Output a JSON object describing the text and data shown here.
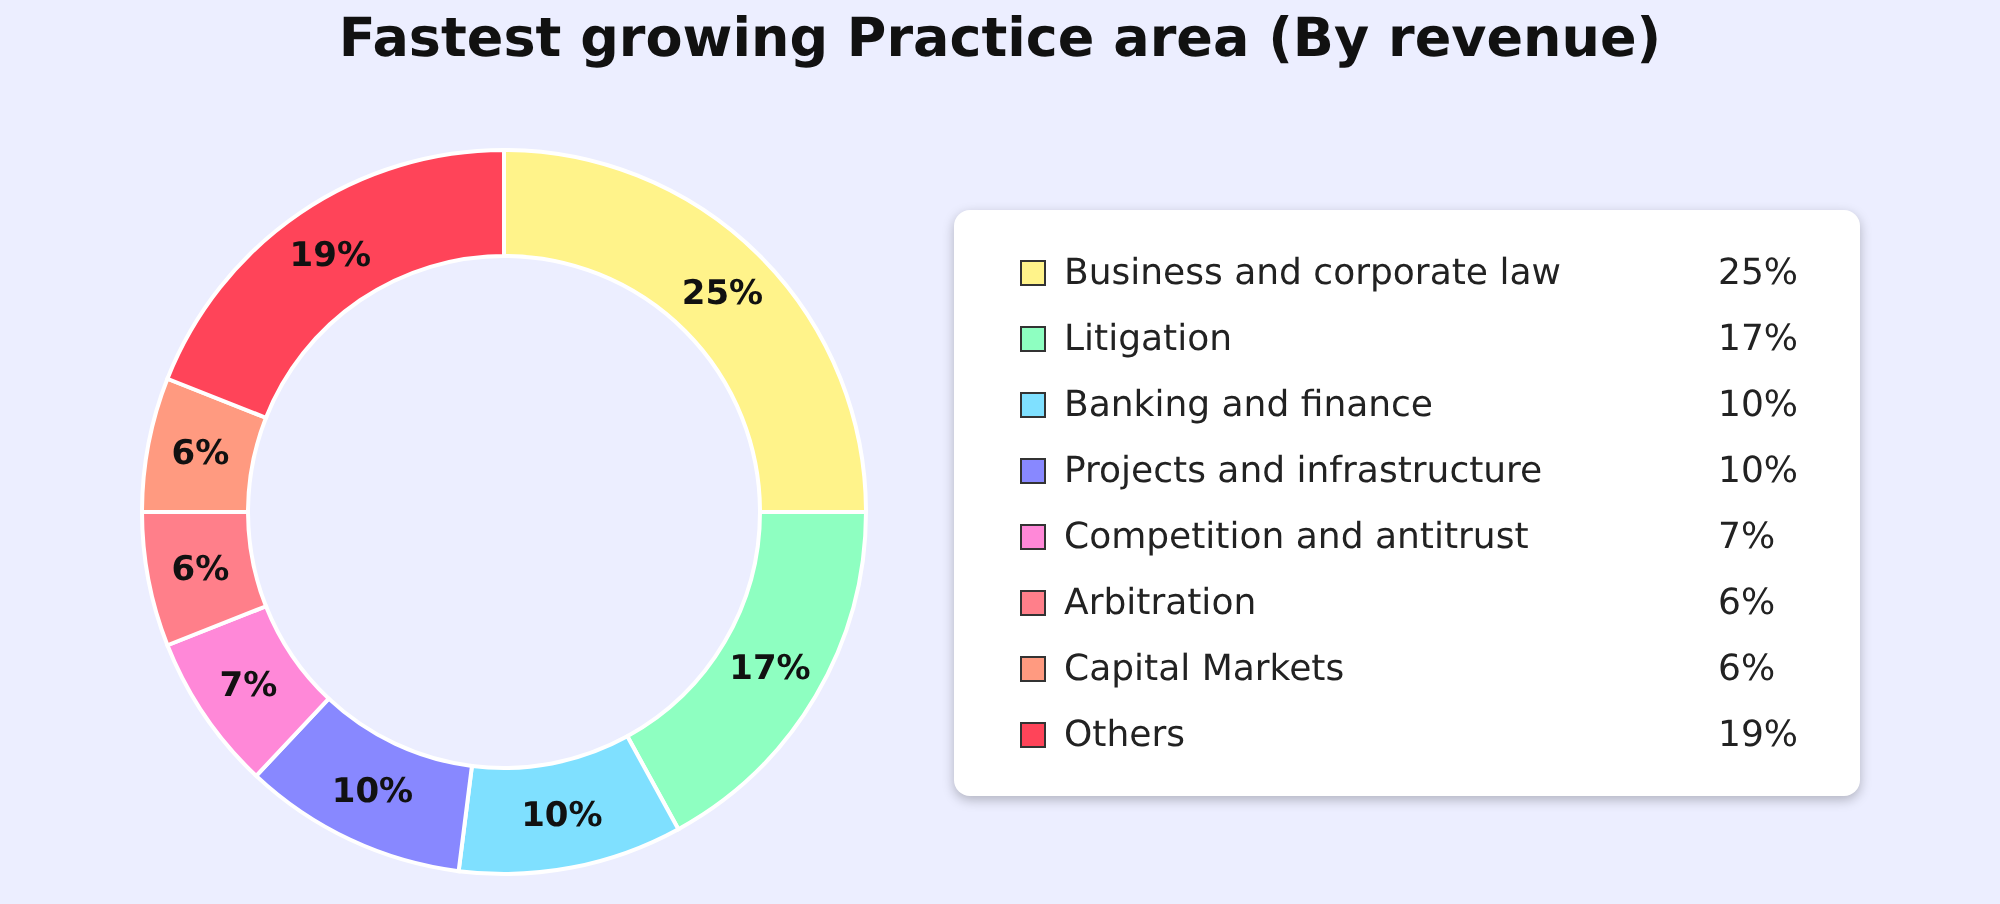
{
  "chart_data": {
    "type": "donut",
    "title": "Fastest growing Practice area (By revenue)",
    "categories": [
      "Business and corporate law",
      "Litigation",
      "Banking and finance",
      "Projects and infrastructure",
      "Competition and antitrust",
      "Arbitration",
      "Capital Markets",
      "Others"
    ],
    "values": [
      25,
      17,
      10,
      10,
      7,
      6,
      6,
      19
    ],
    "value_labels": [
      "25%",
      "17%",
      "10%",
      "10%",
      "7%",
      "6%",
      "6%",
      "19%"
    ],
    "colors": [
      "#fff38a",
      "#8effc1",
      "#7fe0ff",
      "#8888ff",
      "#ff88d8",
      "#ff7f8a",
      "#ff9a80",
      "#ff4459"
    ],
    "legend": "right"
  }
}
